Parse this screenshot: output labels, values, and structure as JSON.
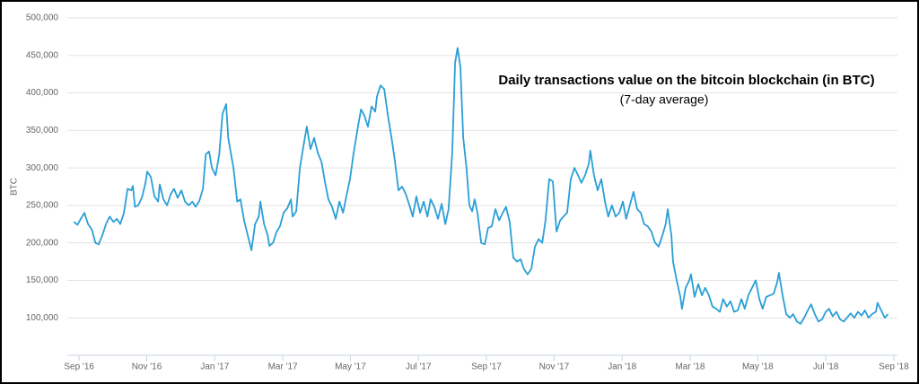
{
  "chart_data": {
    "type": "line",
    "title": "Daily transactions value on the bitcoin blockchain (in BTC)",
    "subtitle": "(7-day average)",
    "y_label": "BTC",
    "color": "#2a9fd6",
    "grid": true,
    "xlim": [
      2016.638,
      2018.676
    ],
    "ylim": [
      50000,
      500000
    ],
    "xticks": [
      {
        "value": 2016.667,
        "label": "Sep '16"
      },
      {
        "value": 2016.833,
        "label": "Nov '16"
      },
      {
        "value": 2017.0,
        "label": "Jan '17"
      },
      {
        "value": 2017.167,
        "label": "Mar '17"
      },
      {
        "value": 2017.333,
        "label": "May '17"
      },
      {
        "value": 2017.5,
        "label": "Jul '17"
      },
      {
        "value": 2017.667,
        "label": "Sep '17"
      },
      {
        "value": 2017.833,
        "label": "Nov '17"
      },
      {
        "value": 2018.0,
        "label": "Jan '18"
      },
      {
        "value": 2018.167,
        "label": "Mar '18"
      },
      {
        "value": 2018.333,
        "label": "May '18"
      },
      {
        "value": 2018.5,
        "label": "Jul '18"
      },
      {
        "value": 2018.667,
        "label": "Sep '18"
      }
    ],
    "yticks": [
      {
        "value": 100000,
        "label": "100,000"
      },
      {
        "value": 150000,
        "label": "150,000"
      },
      {
        "value": 200000,
        "label": "200,000"
      },
      {
        "value": 250000,
        "label": "250,000"
      },
      {
        "value": 300000,
        "label": "300,000"
      },
      {
        "value": 350000,
        "label": "350,000"
      },
      {
        "value": 400000,
        "label": "400,000"
      },
      {
        "value": 450000,
        "label": "450,000"
      },
      {
        "value": 500000,
        "label": "500,000"
      }
    ],
    "x": [
      2016.654,
      2016.663,
      2016.671,
      2016.68,
      2016.689,
      2016.698,
      2016.707,
      2016.715,
      2016.724,
      2016.733,
      2016.742,
      2016.751,
      2016.76,
      2016.768,
      2016.777,
      2016.786,
      2016.795,
      2016.799,
      2016.804,
      2016.812,
      2016.821,
      2016.83,
      2016.834,
      2016.843,
      2016.852,
      2016.861,
      2016.865,
      2016.874,
      2016.883,
      2016.892,
      2016.9,
      2016.909,
      2016.918,
      2016.927,
      2016.936,
      2016.945,
      2016.953,
      2016.962,
      2016.971,
      2016.978,
      2016.986,
      2016.993,
      2017.002,
      2017.011,
      2017.019,
      2017.028,
      2017.033,
      2017.041,
      2017.046,
      2017.055,
      2017.063,
      2017.072,
      2017.081,
      2017.09,
      2017.099,
      2017.108,
      2017.112,
      2017.121,
      2017.13,
      2017.134,
      2017.143,
      2017.152,
      2017.16,
      2017.169,
      2017.178,
      2017.187,
      2017.191,
      2017.2,
      2017.209,
      2017.218,
      2017.226,
      2017.235,
      2017.244,
      2017.253,
      2017.262,
      2017.271,
      2017.279,
      2017.288,
      2017.297,
      2017.306,
      2017.315,
      2017.323,
      2017.332,
      2017.341,
      2017.35,
      2017.359,
      2017.367,
      2017.376,
      2017.385,
      2017.394,
      2017.398,
      2017.407,
      2017.416,
      2017.425,
      2017.434,
      2017.442,
      2017.451,
      2017.46,
      2017.469,
      2017.478,
      2017.486,
      2017.495,
      2017.504,
      2017.513,
      2017.522,
      2017.53,
      2017.539,
      2017.548,
      2017.557,
      2017.566,
      2017.574,
      2017.583,
      2017.59,
      2017.596,
      2017.603,
      2017.61,
      2017.618,
      2017.625,
      2017.632,
      2017.638,
      2017.645,
      2017.654,
      2017.663,
      2017.671,
      2017.68,
      2017.689,
      2017.698,
      2017.707,
      2017.715,
      2017.724,
      2017.733,
      2017.742,
      2017.751,
      2017.759,
      2017.768,
      2017.777,
      2017.786,
      2017.795,
      2017.804,
      2017.812,
      2017.821,
      2017.83,
      2017.839,
      2017.848,
      2017.856,
      2017.865,
      2017.874,
      2017.883,
      2017.892,
      2017.9,
      2017.909,
      2017.918,
      2017.922,
      2017.931,
      2017.94,
      2017.949,
      2017.958,
      2017.966,
      2017.975,
      2017.984,
      2017.993,
      2018.002,
      2018.01,
      2018.019,
      2018.028,
      2018.037,
      2018.046,
      2018.054,
      2018.063,
      2018.072,
      2018.081,
      2018.09,
      2018.099,
      2018.107,
      2018.112,
      2018.121,
      2018.125,
      2018.134,
      2018.143,
      2018.147,
      2018.156,
      2018.165,
      2018.169,
      2018.178,
      2018.187,
      2018.196,
      2018.204,
      2018.213,
      2018.222,
      2018.231,
      2018.24,
      2018.248,
      2018.257,
      2018.266,
      2018.275,
      2018.284,
      2018.293,
      2018.301,
      2018.31,
      2018.319,
      2018.328,
      2018.337,
      2018.345,
      2018.354,
      2018.363,
      2018.372,
      2018.381,
      2018.385,
      2018.394,
      2018.403,
      2018.412,
      2018.42,
      2018.429,
      2018.438,
      2018.447,
      2018.456,
      2018.464,
      2018.473,
      2018.482,
      2018.491,
      2018.5,
      2018.508,
      2018.517,
      2018.526,
      2018.535,
      2018.544,
      2018.552,
      2018.561,
      2018.57,
      2018.579,
      2018.588,
      2018.596,
      2018.605,
      2018.614,
      2018.623,
      2018.627,
      2018.636,
      2018.645,
      2018.653
    ],
    "values": [
      228000,
      224000,
      232000,
      240000,
      225000,
      218000,
      200000,
      198000,
      210000,
      225000,
      235000,
      228000,
      232000,
      225000,
      240000,
      272000,
      270000,
      276000,
      248000,
      250000,
      260000,
      280000,
      295000,
      288000,
      262000,
      255000,
      278000,
      258000,
      250000,
      265000,
      272000,
      260000,
      270000,
      255000,
      250000,
      255000,
      248000,
      256000,
      272000,
      318000,
      322000,
      300000,
      290000,
      318000,
      372000,
      385000,
      340000,
      315000,
      300000,
      255000,
      258000,
      230000,
      210000,
      190000,
      225000,
      235000,
      255000,
      225000,
      210000,
      196000,
      200000,
      215000,
      222000,
      240000,
      246000,
      258000,
      235000,
      242000,
      300000,
      330000,
      355000,
      325000,
      340000,
      320000,
      308000,
      280000,
      258000,
      248000,
      232000,
      255000,
      240000,
      262000,
      285000,
      320000,
      350000,
      378000,
      370000,
      355000,
      382000,
      375000,
      395000,
      410000,
      405000,
      370000,
      340000,
      310000,
      270000,
      275000,
      265000,
      250000,
      235000,
      262000,
      240000,
      255000,
      235000,
      258000,
      248000,
      232000,
      252000,
      225000,
      245000,
      320000,
      440000,
      460000,
      435000,
      340000,
      300000,
      250000,
      242000,
      258000,
      240000,
      200000,
      198000,
      220000,
      222000,
      245000,
      230000,
      240000,
      248000,
      228000,
      180000,
      175000,
      178000,
      165000,
      158000,
      165000,
      195000,
      205000,
      200000,
      230000,
      285000,
      282000,
      215000,
      230000,
      235000,
      240000,
      285000,
      300000,
      290000,
      280000,
      290000,
      305000,
      323000,
      290000,
      270000,
      285000,
      255000,
      235000,
      250000,
      235000,
      240000,
      255000,
      232000,
      250000,
      268000,
      245000,
      240000,
      225000,
      222000,
      215000,
      200000,
      195000,
      210000,
      225000,
      245000,
      210000,
      175000,
      150000,
      128000,
      112000,
      140000,
      150000,
      158000,
      128000,
      145000,
      130000,
      140000,
      130000,
      115000,
      112000,
      108000,
      125000,
      115000,
      122000,
      108000,
      110000,
      125000,
      112000,
      130000,
      140000,
      150000,
      125000,
      112000,
      128000,
      130000,
      132000,
      148000,
      160000,
      130000,
      105000,
      100000,
      105000,
      95000,
      92000,
      100000,
      110000,
      118000,
      105000,
      95000,
      98000,
      108000,
      112000,
      102000,
      108000,
      98000,
      95000,
      100000,
      106000,
      100000,
      108000,
      103000,
      110000,
      100000,
      105000,
      108000,
      120000,
      110000,
      100000,
      105000
    ]
  }
}
